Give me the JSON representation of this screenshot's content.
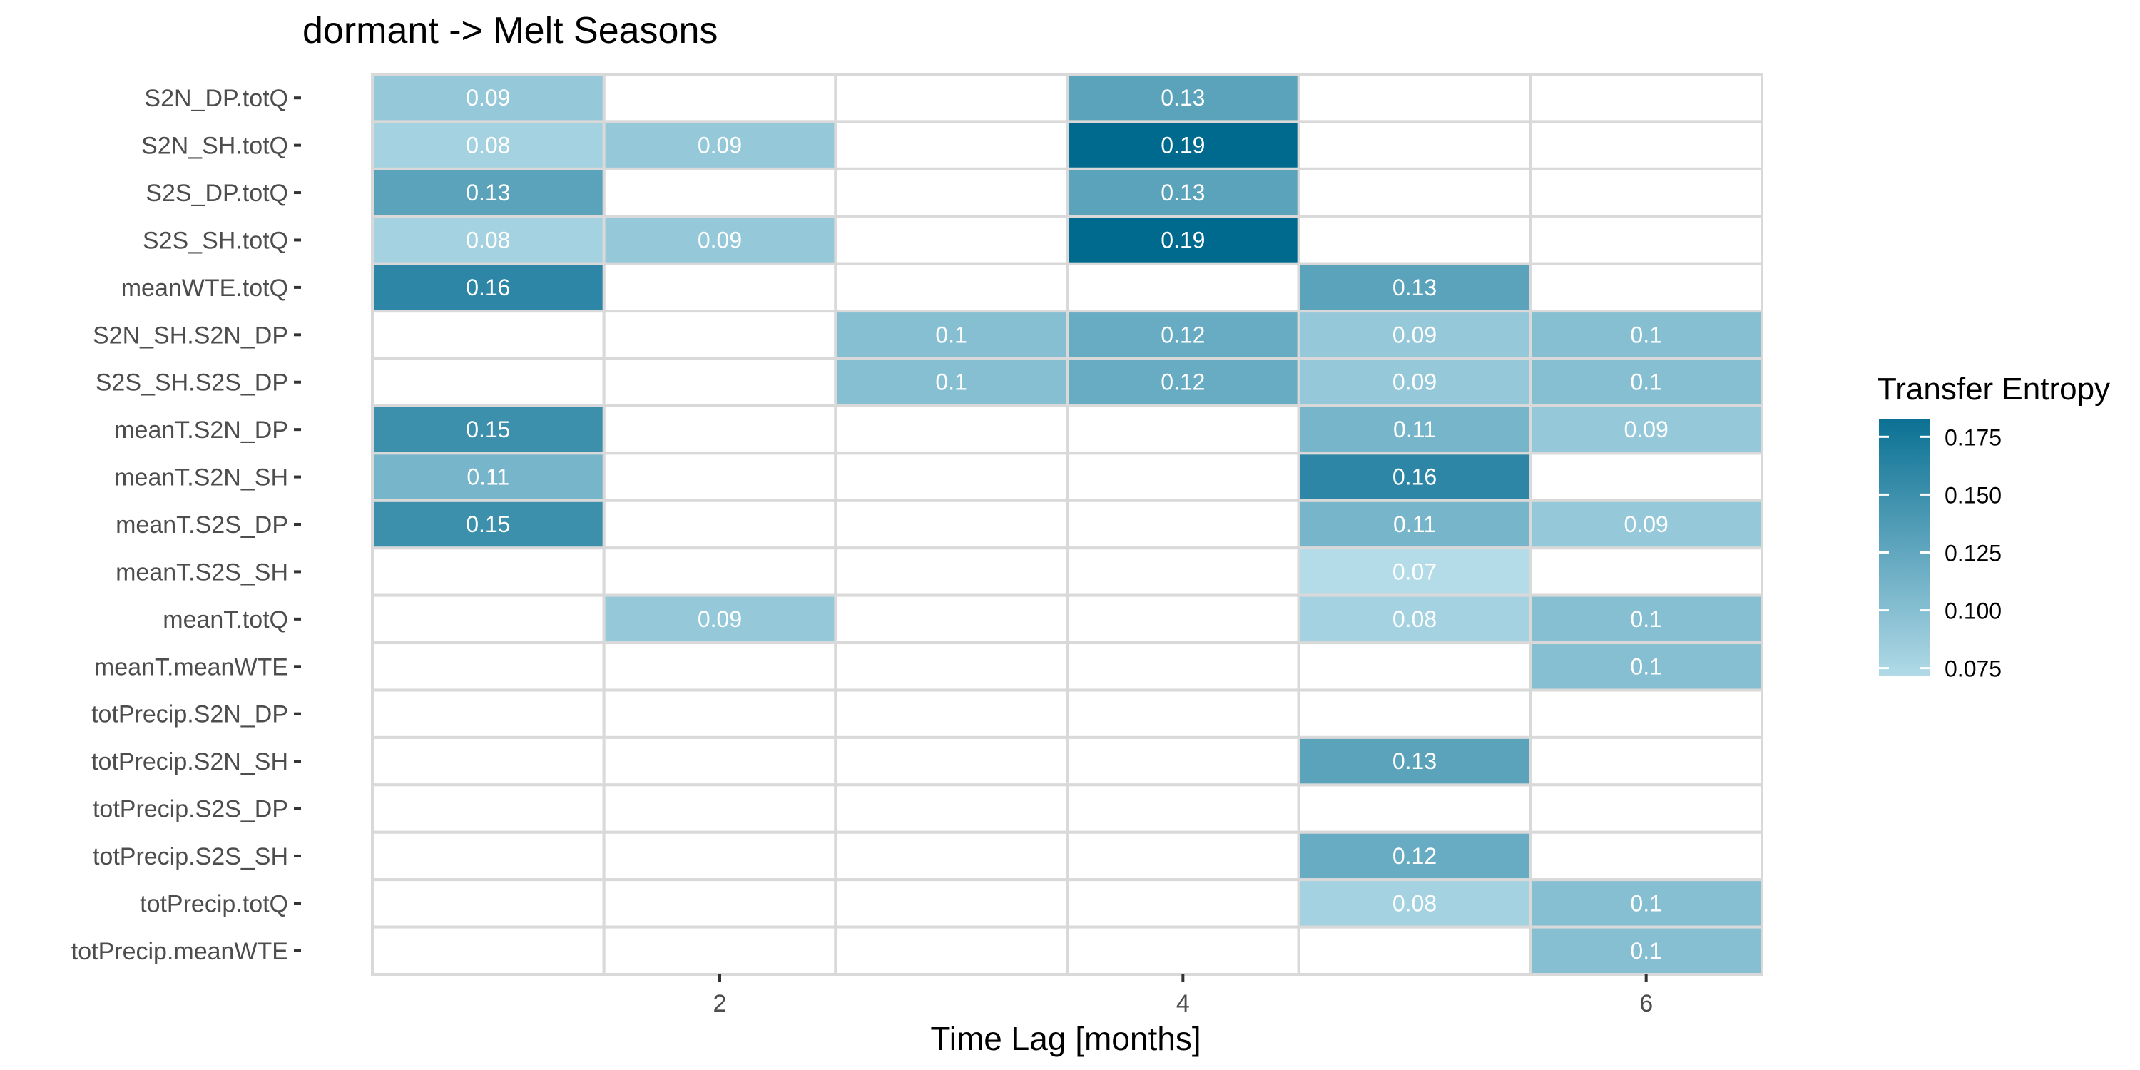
{
  "chart_data": {
    "type": "heatmap",
    "title": "dormant -> Melt Seasons",
    "xlabel": "Time Lag [months]",
    "ylabel": "",
    "x_categories": [
      1,
      2,
      3,
      4,
      5,
      6
    ],
    "x_tick_labels": [
      "2",
      "4",
      "6"
    ],
    "x_tick_values": [
      2,
      4,
      6
    ],
    "y_categories": [
      "S2N_DP.totQ",
      "S2N_SH.totQ",
      "S2S_DP.totQ",
      "S2S_SH.totQ",
      "meanWTE.totQ",
      "S2N_SH.S2N_DP",
      "S2S_SH.S2S_DP",
      "meanT.S2N_DP",
      "meanT.S2N_SH",
      "meanT.S2S_DP",
      "meanT.S2S_SH",
      "meanT.totQ",
      "meanT.meanWTE",
      "totPrecip.S2N_DP",
      "totPrecip.S2N_SH",
      "totPrecip.S2S_DP",
      "totPrecip.S2S_SH",
      "totPrecip.totQ",
      "totPrecip.meanWTE"
    ],
    "cells": [
      {
        "y": "S2N_DP.totQ",
        "x": 1,
        "value": 0.09,
        "label": "0.09"
      },
      {
        "y": "S2N_DP.totQ",
        "x": 4,
        "value": 0.13,
        "label": "0.13"
      },
      {
        "y": "S2N_SH.totQ",
        "x": 1,
        "value": 0.08,
        "label": "0.08"
      },
      {
        "y": "S2N_SH.totQ",
        "x": 2,
        "value": 0.09,
        "label": "0.09"
      },
      {
        "y": "S2N_SH.totQ",
        "x": 4,
        "value": 0.19,
        "label": "0.19"
      },
      {
        "y": "S2S_DP.totQ",
        "x": 1,
        "value": 0.13,
        "label": "0.13"
      },
      {
        "y": "S2S_DP.totQ",
        "x": 4,
        "value": 0.13,
        "label": "0.13"
      },
      {
        "y": "S2S_SH.totQ",
        "x": 1,
        "value": 0.08,
        "label": "0.08"
      },
      {
        "y": "S2S_SH.totQ",
        "x": 2,
        "value": 0.09,
        "label": "0.09"
      },
      {
        "y": "S2S_SH.totQ",
        "x": 4,
        "value": 0.19,
        "label": "0.19"
      },
      {
        "y": "meanWTE.totQ",
        "x": 1,
        "value": 0.16,
        "label": "0.16"
      },
      {
        "y": "meanWTE.totQ",
        "x": 5,
        "value": 0.13,
        "label": "0.13"
      },
      {
        "y": "S2N_SH.S2N_DP",
        "x": 3,
        "value": 0.1,
        "label": "0.1"
      },
      {
        "y": "S2N_SH.S2N_DP",
        "x": 4,
        "value": 0.12,
        "label": "0.12"
      },
      {
        "y": "S2N_SH.S2N_DP",
        "x": 5,
        "value": 0.09,
        "label": "0.09"
      },
      {
        "y": "S2N_SH.S2N_DP",
        "x": 6,
        "value": 0.1,
        "label": "0.1"
      },
      {
        "y": "S2S_SH.S2S_DP",
        "x": 3,
        "value": 0.1,
        "label": "0.1"
      },
      {
        "y": "S2S_SH.S2S_DP",
        "x": 4,
        "value": 0.12,
        "label": "0.12"
      },
      {
        "y": "S2S_SH.S2S_DP",
        "x": 5,
        "value": 0.09,
        "label": "0.09"
      },
      {
        "y": "S2S_SH.S2S_DP",
        "x": 6,
        "value": 0.1,
        "label": "0.1"
      },
      {
        "y": "meanT.S2N_DP",
        "x": 1,
        "value": 0.15,
        "label": "0.15"
      },
      {
        "y": "meanT.S2N_DP",
        "x": 5,
        "value": 0.11,
        "label": "0.11"
      },
      {
        "y": "meanT.S2N_DP",
        "x": 6,
        "value": 0.09,
        "label": "0.09"
      },
      {
        "y": "meanT.S2N_SH",
        "x": 1,
        "value": 0.11,
        "label": "0.11"
      },
      {
        "y": "meanT.S2N_SH",
        "x": 5,
        "value": 0.16,
        "label": "0.16"
      },
      {
        "y": "meanT.S2S_DP",
        "x": 1,
        "value": 0.15,
        "label": "0.15"
      },
      {
        "y": "meanT.S2S_DP",
        "x": 5,
        "value": 0.11,
        "label": "0.11"
      },
      {
        "y": "meanT.S2S_DP",
        "x": 6,
        "value": 0.09,
        "label": "0.09"
      },
      {
        "y": "meanT.S2S_SH",
        "x": 5,
        "value": 0.07,
        "label": "0.07"
      },
      {
        "y": "meanT.totQ",
        "x": 2,
        "value": 0.09,
        "label": "0.09"
      },
      {
        "y": "meanT.totQ",
        "x": 5,
        "value": 0.08,
        "label": "0.08"
      },
      {
        "y": "meanT.totQ",
        "x": 6,
        "value": 0.1,
        "label": "0.1"
      },
      {
        "y": "meanT.meanWTE",
        "x": 6,
        "value": 0.1,
        "label": "0.1"
      },
      {
        "y": "totPrecip.S2N_SH",
        "x": 5,
        "value": 0.13,
        "label": "0.13"
      },
      {
        "y": "totPrecip.S2S_SH",
        "x": 5,
        "value": 0.12,
        "label": "0.12"
      },
      {
        "y": "totPrecip.totQ",
        "x": 5,
        "value": 0.08,
        "label": "0.08"
      },
      {
        "y": "totPrecip.totQ",
        "x": 6,
        "value": 0.1,
        "label": "0.1"
      },
      {
        "y": "totPrecip.meanWTE",
        "x": 6,
        "value": 0.1,
        "label": "0.1"
      }
    ],
    "legend": {
      "title": "Transfer Entropy",
      "placement": "right",
      "breaks": [
        0.075,
        0.1,
        0.125,
        0.15,
        0.175
      ],
      "break_labels": [
        "0.075",
        "0.100",
        "0.125",
        "0.150",
        "0.175"
      ],
      "range": [
        0.07,
        0.19
      ]
    },
    "colors": {
      "low": "#b3dbe8",
      "high": "#006a8e",
      "empty_cell": "#ffffff",
      "cell_border": "#d9d9d9",
      "cell_label": "#ffffff",
      "axis_text": "#4d4d4d",
      "title_text": "#000000"
    },
    "grid": false
  }
}
